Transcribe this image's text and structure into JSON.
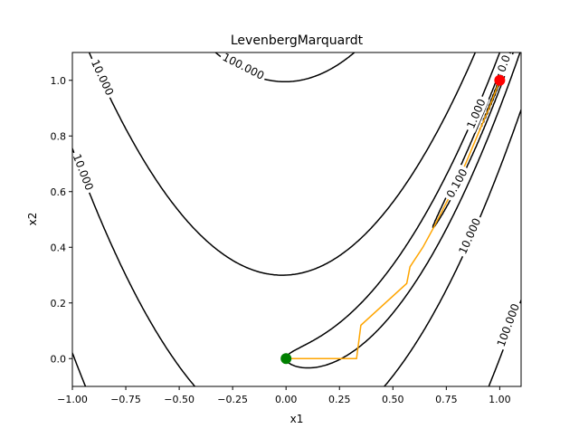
{
  "chart_data": {
    "type": "line",
    "title": "LevenbergMarquardt",
    "xlabel": "x1",
    "ylabel": "x2",
    "xlim": [
      -1.0,
      1.1
    ],
    "ylim": [
      -0.1,
      1.1
    ],
    "xticks": [
      "−1.00",
      "−0.75",
      "−0.50",
      "−0.25",
      "0.00",
      "0.25",
      "0.50",
      "0.75",
      "1.00"
    ],
    "xtick_values": [
      -1.0,
      -0.75,
      -0.5,
      -0.25,
      0.0,
      0.25,
      0.5,
      0.75,
      1.0
    ],
    "yticks": [
      "0.0",
      "0.2",
      "0.4",
      "0.6",
      "0.8",
      "1.0"
    ],
    "ytick_values": [
      0.0,
      0.2,
      0.4,
      0.6,
      0.8,
      1.0
    ],
    "grid": false,
    "function": "rosenbrock",
    "contour_levels": [
      0.001,
      0.01,
      0.1,
      1.0,
      10.0,
      100.0
    ],
    "contour_labels": [
      {
        "text": "100.000",
        "x": -0.2,
        "y": 1.05
      },
      {
        "text": "10.000",
        "x": -0.86,
        "y": 1.01
      },
      {
        "text": "10.000",
        "x": -0.95,
        "y": 0.67
      },
      {
        "text": "1.000",
        "x": 0.89,
        "y": 0.88
      },
      {
        "text": "0.100",
        "x": 0.8,
        "y": 0.63
      },
      {
        "text": "10.000",
        "x": 0.86,
        "y": 0.44
      },
      {
        "text": "100.000",
        "x": 1.04,
        "y": 0.12
      },
      {
        "text": "0.0",
        "x": 1.02,
        "y": 1.06
      }
    ],
    "path": {
      "color": "#ffa500",
      "x": [
        0.0,
        0.33,
        0.35,
        0.565,
        0.58,
        0.64,
        0.69,
        0.77,
        0.84,
        0.9,
        0.95,
        1.0
      ],
      "y": [
        0.0,
        0.0,
        0.12,
        0.27,
        0.33,
        0.4,
        0.47,
        0.59,
        0.7,
        0.81,
        0.9,
        1.0
      ]
    },
    "start_point": {
      "x": 0.0,
      "y": 0.0,
      "color": "#008000"
    },
    "end_point": {
      "x": 1.0,
      "y": 1.0,
      "color": "#ff0000"
    }
  }
}
